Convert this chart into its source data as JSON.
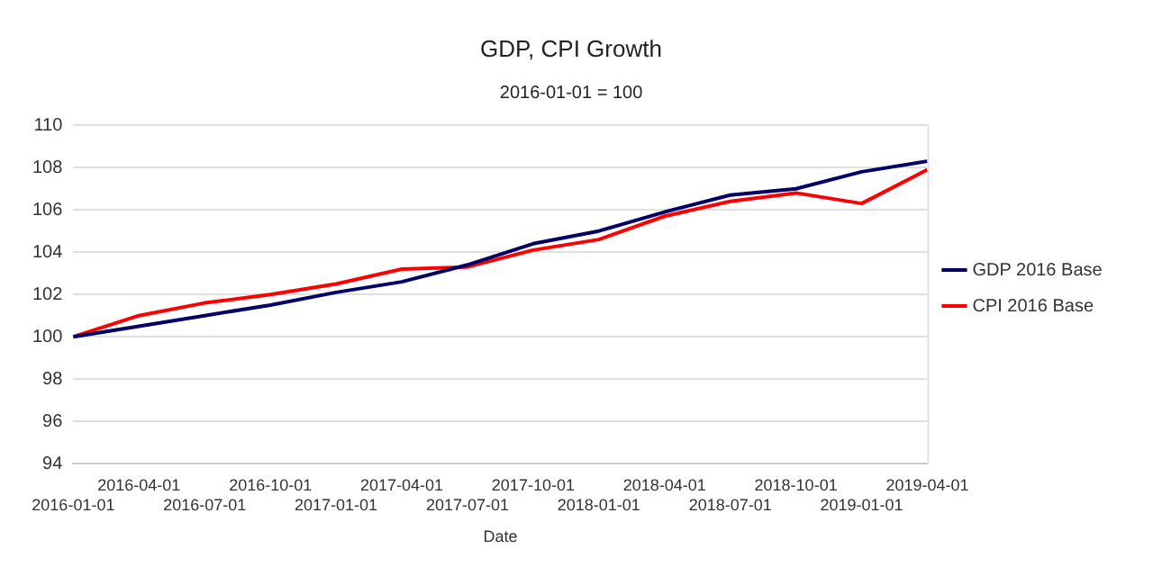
{
  "chart_data": {
    "type": "line",
    "title": "GDP, CPI Growth",
    "subtitle": "2016-01-01 = 100",
    "xlabel": "Date",
    "categories": [
      "2016-01-01",
      "2016-04-01",
      "2016-07-01",
      "2016-10-01",
      "2017-01-01",
      "2017-04-01",
      "2017-07-01",
      "2017-10-01",
      "2018-01-01",
      "2018-04-01",
      "2018-07-01",
      "2018-10-01",
      "2019-01-01",
      "2019-04-01"
    ],
    "series": [
      {
        "name": "GDP 2016 Base",
        "color": "#000066",
        "values": [
          100,
          100.5,
          101.0,
          101.5,
          102.1,
          102.6,
          103.4,
          104.4,
          105.0,
          105.9,
          106.7,
          107.0,
          107.8,
          108.3
        ]
      },
      {
        "name": "CPI 2016 Base",
        "color": "#ff0000",
        "values": [
          100,
          101.0,
          101.6,
          102.0,
          102.5,
          103.2,
          103.3,
          104.1,
          104.6,
          105.7,
          106.4,
          106.8,
          106.3,
          107.9
        ]
      }
    ],
    "ylim": [
      94,
      110
    ],
    "yticks": [
      94,
      96,
      98,
      100,
      102,
      104,
      106,
      108,
      110
    ],
    "grid": "y",
    "legend": "right",
    "marker": "none",
    "line_style": "solid"
  }
}
